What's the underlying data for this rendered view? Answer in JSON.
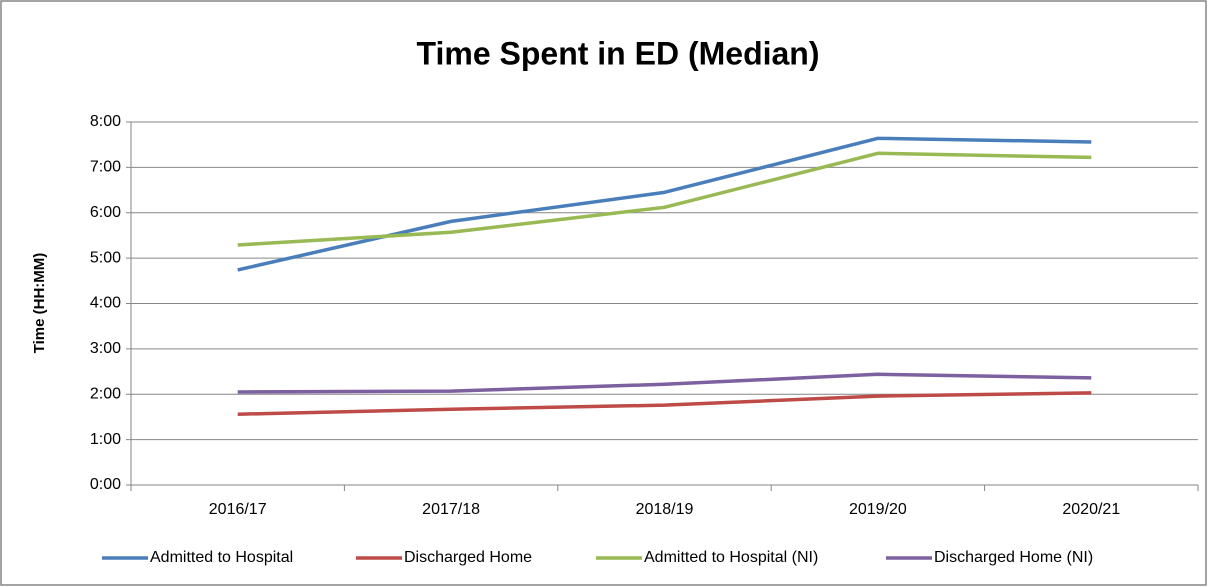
{
  "chart_data": {
    "type": "line",
    "title": "Time Spent in ED (Median)",
    "y_label": "Time (HH:MM)",
    "categories": [
      "2016/17",
      "2017/18",
      "2018/19",
      "2019/20",
      "2020/21"
    ],
    "series": [
      {
        "name": "Admitted to Hospital",
        "color": "#4a7ebb",
        "values": [
          4.74,
          5.81,
          6.45,
          7.64,
          7.56
        ]
      },
      {
        "name": "Discharged Home",
        "color": "#be4b48",
        "values": [
          1.56,
          1.67,
          1.76,
          1.96,
          2.03
        ]
      },
      {
        "name": "Admitted to Hospital (NI)",
        "color": "#98b954",
        "values": [
          5.29,
          5.57,
          6.12,
          7.31,
          7.22
        ]
      },
      {
        "name": "Discharged Home (NI)",
        "color": "#7d60a0",
        "values": [
          2.05,
          2.07,
          2.22,
          2.44,
          2.36
        ]
      }
    ],
    "ylim": [
      0,
      8
    ],
    "yticks": [
      {
        "value": 0,
        "label": "0:00"
      },
      {
        "value": 1,
        "label": "1:00"
      },
      {
        "value": 2,
        "label": "2:00"
      },
      {
        "value": 3,
        "label": "3:00"
      },
      {
        "value": 4,
        "label": "4:00"
      },
      {
        "value": 5,
        "label": "5:00"
      },
      {
        "value": 6,
        "label": "6:00"
      },
      {
        "value": 7,
        "label": "7:00"
      },
      {
        "value": 8,
        "label": "8:00"
      }
    ],
    "grid": true,
    "legend": "bottom"
  }
}
